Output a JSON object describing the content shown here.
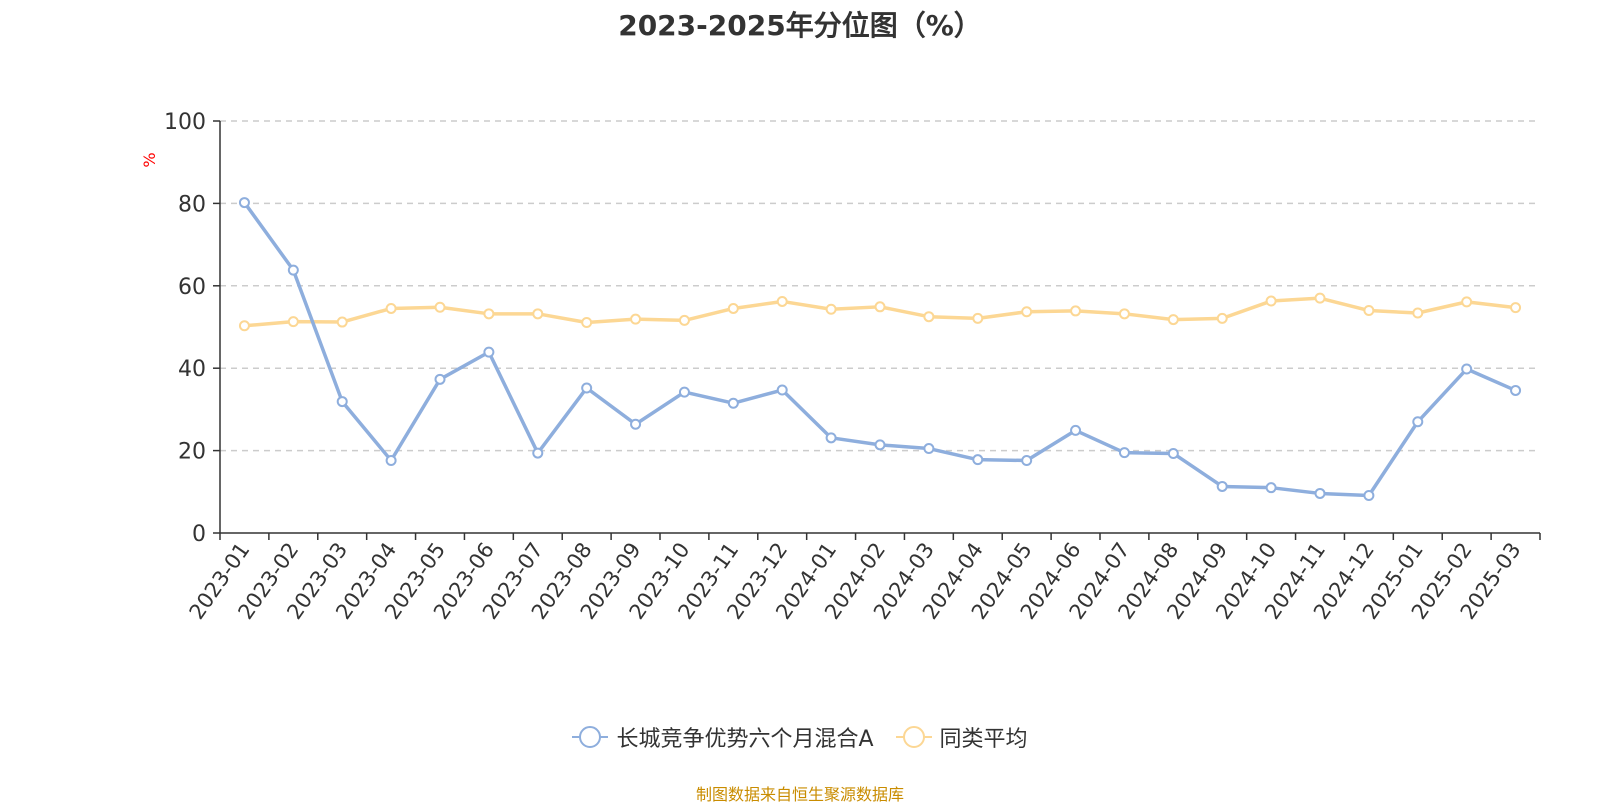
{
  "title": "2023-2025年分位图（%）",
  "source": "制图数据来自恒生聚源数据库",
  "chart_data": {
    "type": "line",
    "title": "2023-2025年分位图（%）",
    "ylabel": "%",
    "ylim": [
      0,
      100
    ],
    "yticks": [
      0,
      20,
      40,
      60,
      80,
      100
    ],
    "grid": true,
    "legend_position": "bottom",
    "categories": [
      "2023-01",
      "2023-02",
      "2023-03",
      "2023-04",
      "2023-05",
      "2023-06",
      "2023-07",
      "2023-08",
      "2023-09",
      "2023-10",
      "2023-11",
      "2023-12",
      "2024-01",
      "2024-02",
      "2024-03",
      "2024-04",
      "2024-05",
      "2024-06",
      "2024-07",
      "2024-08",
      "2024-09",
      "2024-10",
      "2024-11",
      "2024-12",
      "2025-01",
      "2025-02",
      "2025-03"
    ],
    "series": [
      {
        "name": "长城竞争优势六个月混合A",
        "color": "#8eaedd",
        "values": [
          80.2,
          63.8,
          31.9,
          17.6,
          37.3,
          43.9,
          19.4,
          35.2,
          26.4,
          34.2,
          31.5,
          34.7,
          23.1,
          21.4,
          20.5,
          17.8,
          17.6,
          24.9,
          19.5,
          19.3,
          11.3,
          11.0,
          9.6,
          9.1,
          27.0,
          39.8,
          34.6
        ]
      },
      {
        "name": "同类平均",
        "color": "#fcd794",
        "values": [
          50.3,
          51.3,
          51.2,
          54.5,
          54.8,
          53.2,
          53.2,
          51.1,
          51.9,
          51.6,
          54.5,
          56.2,
          54.3,
          54.9,
          52.5,
          52.1,
          53.7,
          53.9,
          53.2,
          51.8,
          52.1,
          56.3,
          57.0,
          54.0,
          53.4,
          56.1,
          54.7
        ]
      }
    ]
  }
}
